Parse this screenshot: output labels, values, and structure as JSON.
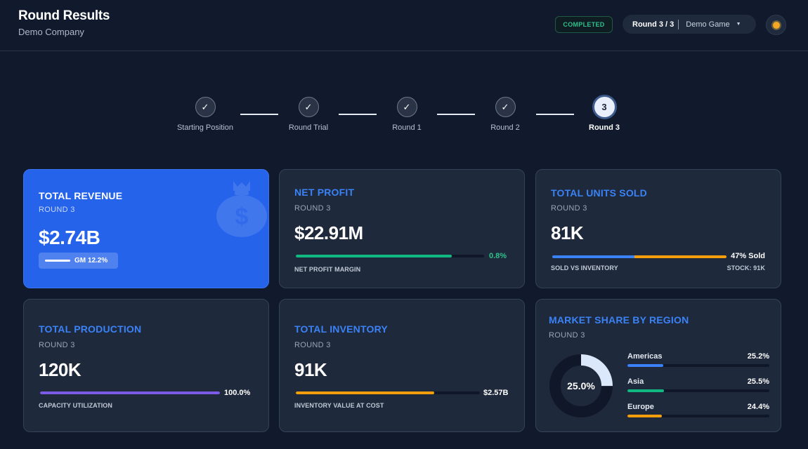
{
  "header": {
    "title": "Round Results",
    "company": "Demo Company",
    "status_badge": "COMPLETED",
    "round_label": "Round 3 / 3",
    "game_label": "Demo Game",
    "theme_icon": "sun-icon"
  },
  "stepper": [
    {
      "label": "Starting Position",
      "symbol": "✓",
      "state": "done"
    },
    {
      "label": "Round Trial",
      "symbol": "✓",
      "state": "done"
    },
    {
      "label": "Round 1",
      "symbol": "✓",
      "state": "done"
    },
    {
      "label": "Round 2",
      "symbol": "✓",
      "state": "done"
    },
    {
      "label": "Round 3",
      "symbol": "3",
      "state": "active"
    }
  ],
  "cards": {
    "revenue": {
      "title": "TOTAL REVENUE",
      "round": "ROUND 3",
      "value": "$2.74B",
      "gm_label": "GM 12.2%",
      "icon": "money-bag-icon"
    },
    "profit": {
      "title": "NET PROFIT",
      "round": "ROUND 3",
      "value": "$22.91M",
      "bar_value": "0.8%",
      "bar_fill": 0.83,
      "bar_color": "#10b981",
      "caption": "NET PROFIT MARGIN"
    },
    "units": {
      "title": "TOTAL UNITS SOLD",
      "round": "ROUND 3",
      "value": "81K",
      "sold_label": "47% Sold",
      "sold_fill": 0.47,
      "sold_color": "#3b82f6",
      "inventory_color": "#f59e0b",
      "caption": "SOLD VS INVENTORY",
      "stock": "STOCK: 91K"
    },
    "production": {
      "title": "TOTAL PRODUCTION",
      "round": "ROUND 3",
      "value": "120K",
      "bar_value": "100.0%",
      "bar_fill": 1.0,
      "bar_color": "#7c5ce6",
      "caption": "CAPACITY UTILIZATION"
    },
    "inventory": {
      "title": "TOTAL INVENTORY",
      "round": "ROUND 3",
      "value": "91K",
      "bar_value": "$2.57B",
      "bar_fill": 0.75,
      "bar_color": "#f59e0b",
      "caption": "INVENTORY VALUE AT COST"
    },
    "market": {
      "title": "MARKET SHARE BY REGION",
      "round": "ROUND 3",
      "donut_value": "25.0%",
      "donut_fill": 0.25,
      "regions": [
        {
          "name": "Americas",
          "value": "25.2%",
          "fill": 0.252,
          "color": "#3b82f6"
        },
        {
          "name": "Asia",
          "value": "25.5%",
          "fill": 0.255,
          "color": "#10b981"
        },
        {
          "name": "Europe",
          "value": "24.4%",
          "fill": 0.244,
          "color": "#f59e0b"
        }
      ]
    }
  }
}
